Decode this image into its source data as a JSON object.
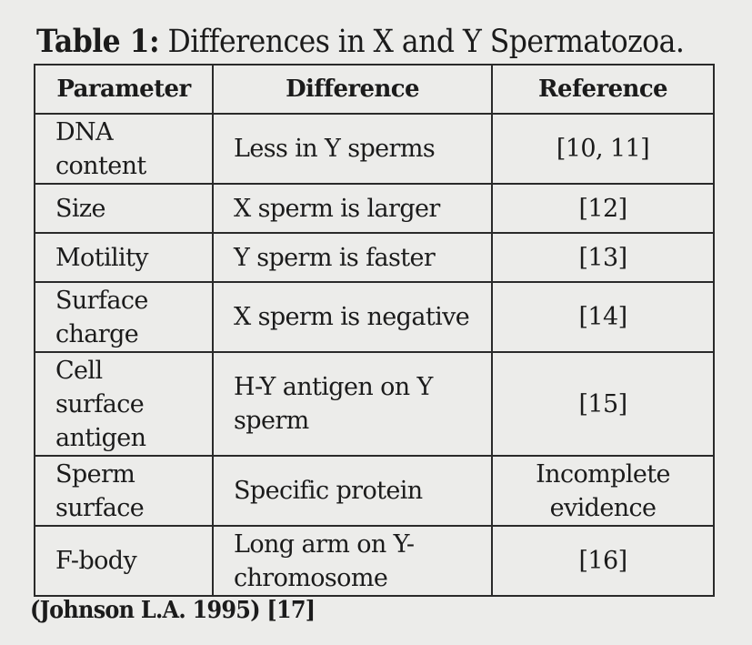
{
  "caption": {
    "label": "Table 1:",
    "text": " Differences in X and Y Spermatozoa."
  },
  "table": {
    "headers": [
      "Parameter",
      "Difference",
      "Reference"
    ],
    "rows": [
      {
        "parameter": "DNA content",
        "difference": "Less in Y sperms",
        "reference": "[10, 11]"
      },
      {
        "parameter": "Size",
        "difference": "X sperm is larger",
        "reference": "[12]"
      },
      {
        "parameter": "Motility",
        "difference": "Y sperm is faster",
        "reference": "[13]"
      },
      {
        "parameter": "Surface charge",
        "difference": "X sperm is negative",
        "reference": "[14]"
      },
      {
        "parameter": "Cell surface antigen",
        "difference": "H-Y antigen on Y sperm",
        "reference": "[15]"
      },
      {
        "parameter": "Sperm surface",
        "difference": "Specific protein",
        "reference": "Incomplete evidence"
      },
      {
        "parameter": "F-body",
        "difference": "Long arm on Y-chromosome",
        "reference": "[16]"
      }
    ]
  },
  "footnote": "(Johnson L.A. 1995)  [17]"
}
